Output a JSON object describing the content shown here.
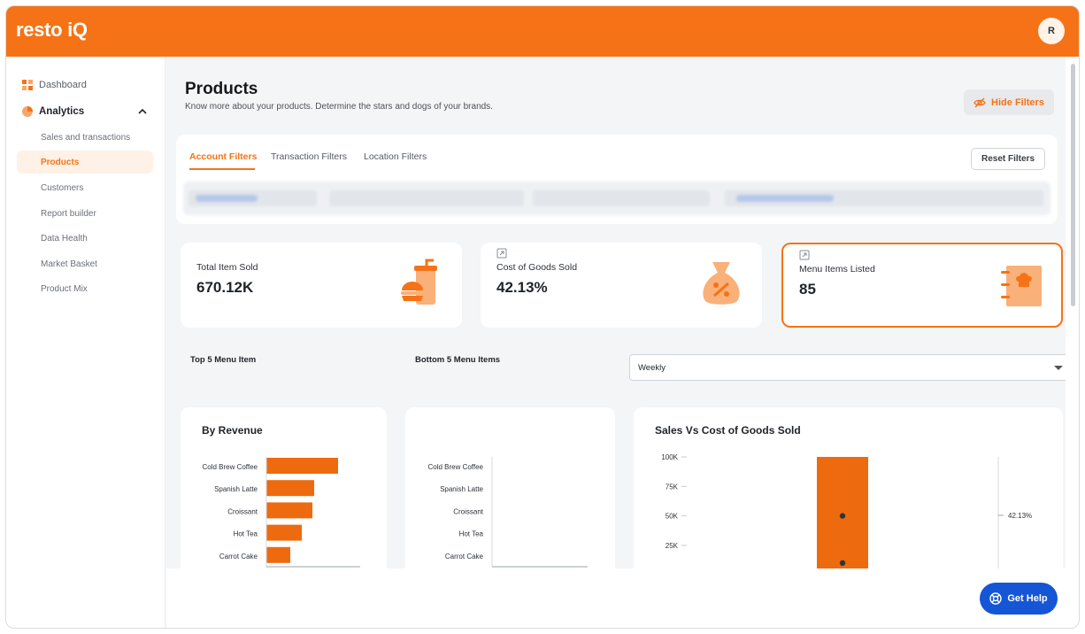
{
  "app": {
    "logo": "resto iQ",
    "avatar_initial": "R"
  },
  "sidebar": {
    "items": [
      {
        "label": "Dashboard"
      },
      {
        "label": "Analytics"
      },
      {
        "label": "Sales and transactions"
      },
      {
        "label": "Products"
      },
      {
        "label": "Customers"
      },
      {
        "label": "Report builder"
      },
      {
        "label": "Data Health"
      },
      {
        "label": "Market Basket"
      },
      {
        "label": "Product Mix"
      }
    ]
  },
  "header": {
    "title": "Products",
    "subtitle": "Know more about your products. Determine the stars and dogs of your brands.",
    "hide_filters_label": "Hide Filters"
  },
  "filters": {
    "tabs": [
      {
        "label": "Account Filters"
      },
      {
        "label": "Transaction Filters"
      },
      {
        "label": "Location Filters"
      }
    ],
    "reset_label": "Reset Filters"
  },
  "stats": [
    {
      "label": "Total Item Sold",
      "value": "670.12K"
    },
    {
      "label": "Cost of Goods Sold",
      "value": "42.13%"
    },
    {
      "label": "Menu Items Listed",
      "value": "85"
    }
  ],
  "sections": {
    "top_label": "Top 5 Menu Item",
    "bottom_label": "Bottom 5 Menu Items",
    "period_select": "Weekly"
  },
  "colors": {
    "brand": "#f57316",
    "bar": "#ee6a0f",
    "help": "#1456d6"
  },
  "chart_data": [
    {
      "type": "bar",
      "title": "By Revenue",
      "orientation": "horizontal",
      "categories": [
        "Cold Brew Coffee",
        "Spanish Latte",
        "Croissant",
        "Hot Tea",
        "Carrot Cake"
      ],
      "values": [
        81,
        54,
        52,
        40,
        27
      ],
      "xlim": [
        0,
        106
      ]
    },
    {
      "type": "bar",
      "title": "",
      "orientation": "horizontal",
      "categories": [
        "Cold Brew Coffee",
        "Spanish Latte",
        "Croissant",
        "Hot Tea",
        "Carrot Cake"
      ],
      "values": [
        0,
        0,
        0,
        0,
        0
      ],
      "xlim": [
        0,
        106
      ]
    },
    {
      "type": "bar",
      "title": "Sales Vs Cost of Goods Sold",
      "y_ticks": [
        "100K",
        "75K",
        "50K",
        "25K"
      ],
      "ylim": [
        0,
        100000
      ],
      "bar_value": 100000,
      "points": [
        50000,
        10000
      ],
      "secondary_label": "42.13%"
    }
  ],
  "help": {
    "label": "Get Help"
  }
}
